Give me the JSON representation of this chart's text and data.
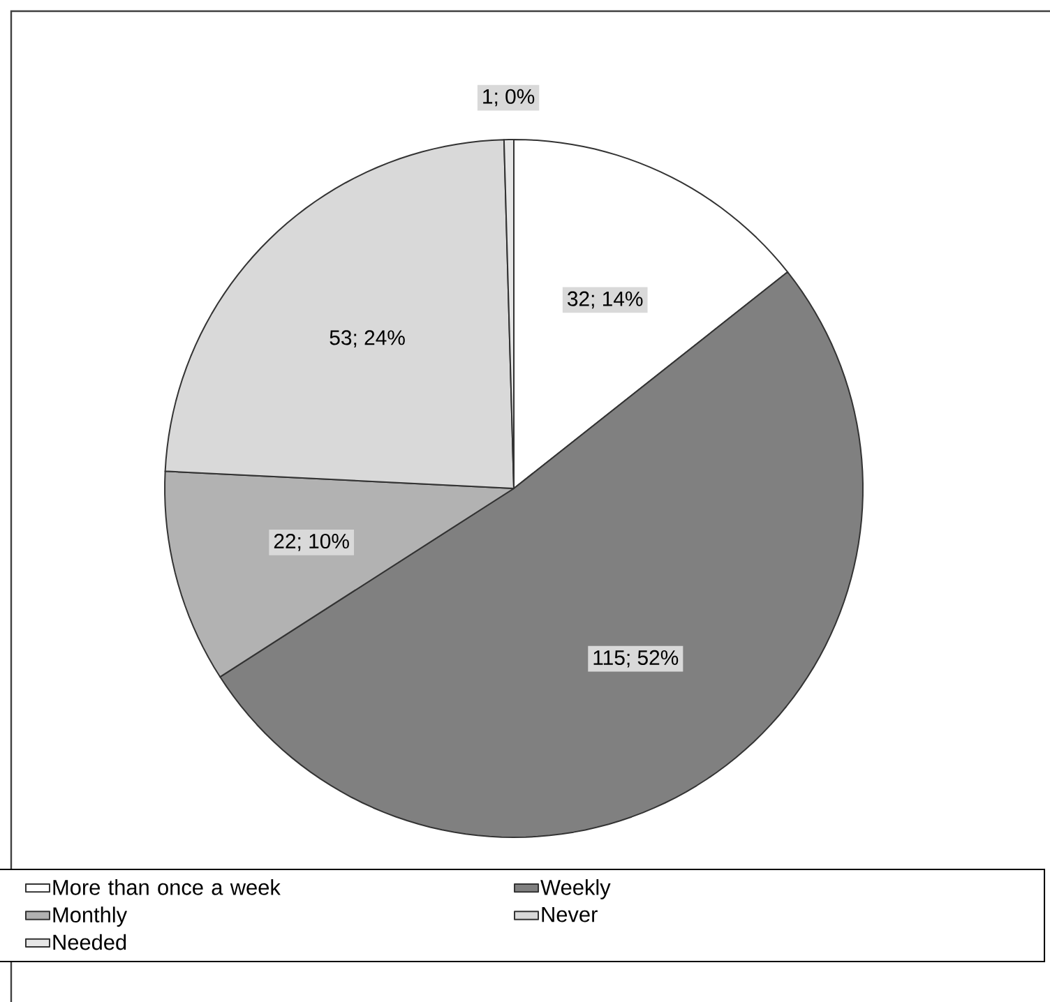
{
  "chart_data": {
    "type": "pie",
    "categories": [
      "More than  once a week",
      "Weekly",
      "Monthly",
      "Never",
      "Needed"
    ],
    "values": [
      32,
      115,
      22,
      53,
      1
    ],
    "colors": [
      "#ffffff",
      "#808080",
      "#b2b2b2",
      "#d9d9d9",
      "#e6e6e6"
    ],
    "value_labels": [
      "32; 14%",
      "115; 52%",
      "22; 10%",
      "53; 24%",
      "1; 0%"
    ],
    "legend": "bottom"
  }
}
